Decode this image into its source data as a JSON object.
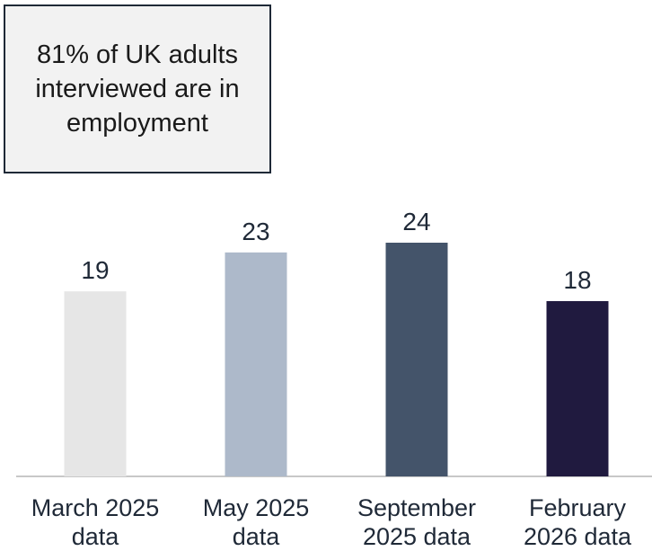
{
  "callout": {
    "text": "81% of UK adults\ninterviewed are in\nemployment"
  },
  "chart_data": {
    "type": "bar",
    "categories": [
      "March 2025\ndata",
      "May 2025\ndata",
      "September\n2025 data",
      "February\n2026 data"
    ],
    "values": [
      19,
      23,
      24,
      18
    ],
    "colors": [
      "#e6e6e6",
      "#adb9ca",
      "#44546a",
      "#201a3f"
    ],
    "ylim": [
      0,
      24
    ],
    "grid": false,
    "legend": "none",
    "data_labels": true,
    "title": "",
    "xlabel": "",
    "ylabel": ""
  }
}
